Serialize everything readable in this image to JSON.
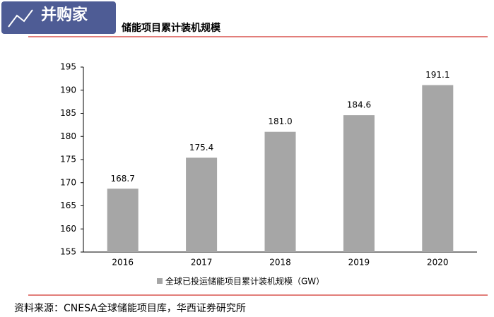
{
  "chart_data": {
    "type": "bar",
    "logo": "并购家",
    "title": "储能项目累计装机规模",
    "categories": [
      "2016",
      "2017",
      "2018",
      "2019",
      "2020"
    ],
    "series": [
      {
        "name": "全球已投运储能项目累计装机规模（GW）",
        "color": "#a6a6a6",
        "values": [
          168.7,
          175.4,
          181.0,
          184.6,
          191.1
        ],
        "value_labels": [
          "168.7",
          "175.4",
          "181.0",
          "184.6",
          "191.1"
        ]
      }
    ],
    "ylim": [
      155,
      195
    ],
    "yticks": [
      155,
      160,
      165,
      170,
      175,
      180,
      185,
      190,
      195
    ],
    "source": "资料来源：CNESA全球储能项目库，华西证券研究所"
  }
}
